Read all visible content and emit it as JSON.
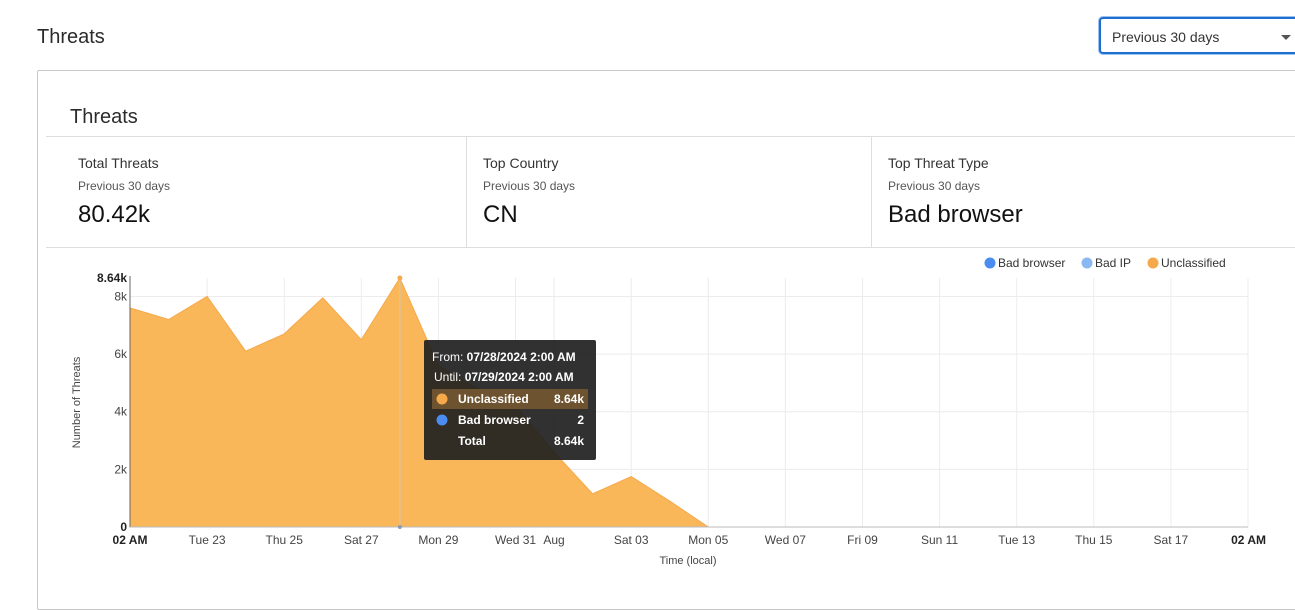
{
  "header": {
    "title": "Threats"
  },
  "range_select": {
    "value": "Previous 30 days"
  },
  "card": {
    "title": "Threats"
  },
  "stats": [
    {
      "label": "Total Threats",
      "sub": "Previous 30 days",
      "value": "80.42k"
    },
    {
      "label": "Top Country",
      "sub": "Previous 30 days",
      "value": "CN"
    },
    {
      "label": "Top Threat Type",
      "sub": "Previous 30 days",
      "value": "Bad browser"
    }
  ],
  "chart_data": {
    "type": "area",
    "ylabel": "Number of Threats",
    "xlabel": "Time (local)",
    "ylim": [
      0,
      8640
    ],
    "y_ticks": [
      "0",
      "2k",
      "4k",
      "6k",
      "8k",
      "8.64k"
    ],
    "y_tick_values": [
      0,
      2000,
      4000,
      6000,
      8000,
      8640
    ],
    "x_tick_labels": [
      "02 AM",
      "Tue 23",
      "Thu 25",
      "Sat 27",
      "Mon 29",
      "Wed 31",
      "Aug",
      "Sat 03",
      "Mon 05",
      "Wed 07",
      "Fri 09",
      "Sun 11",
      "Tue 13",
      "Thu 15",
      "Sat 17",
      "02 AM"
    ],
    "x_tick_days": [
      0,
      2,
      4,
      6,
      8,
      10,
      11,
      13,
      15,
      17,
      19,
      21,
      23,
      25,
      27,
      29
    ],
    "days": [
      0,
      1,
      2,
      3,
      4,
      5,
      6,
      7,
      8,
      9,
      10,
      11,
      12,
      13,
      14,
      15,
      16,
      17,
      18,
      19,
      20,
      21,
      22,
      23,
      24,
      25,
      26,
      27,
      28,
      29
    ],
    "legend": [
      {
        "name": "Bad browser",
        "color": "#4a8cf0"
      },
      {
        "name": "Bad IP",
        "color": "#8ab8f2"
      },
      {
        "name": "Unclassified",
        "color": "#f5a94a"
      }
    ],
    "grid": true,
    "series": [
      {
        "name": "Unclassified",
        "color": "#f9b75a",
        "values": [
          7600,
          7200,
          8000,
          6100,
          6700,
          7950,
          6500,
          8640,
          5600,
          4800,
          4200,
          2600,
          1150,
          1750,
          900,
          0,
          0,
          0,
          0,
          0,
          0,
          0,
          0,
          0,
          0,
          0,
          0,
          0,
          0,
          0
        ]
      },
      {
        "name": "Bad browser",
        "color": "#4a8cf0",
        "values": [
          0,
          0,
          0,
          0,
          0,
          0,
          0,
          2,
          0,
          0,
          0,
          0,
          0,
          0,
          0,
          0,
          0,
          0,
          0,
          0,
          0,
          0,
          0,
          0,
          0,
          0,
          0,
          0,
          0,
          0
        ]
      }
    ],
    "tooltip": {
      "from_label": "From: ",
      "from": "07/28/2024 2:00 AM",
      "until_label": "Until: ",
      "until": "07/29/2024 2:00 AM",
      "rows": [
        {
          "name": "Unclassified",
          "value": "8.64k",
          "color": "#f5a94a"
        },
        {
          "name": "Bad browser",
          "value": "2",
          "color": "#4a8cf0"
        },
        {
          "name": "Total",
          "value": "8.64k",
          "color": ""
        }
      ]
    }
  }
}
